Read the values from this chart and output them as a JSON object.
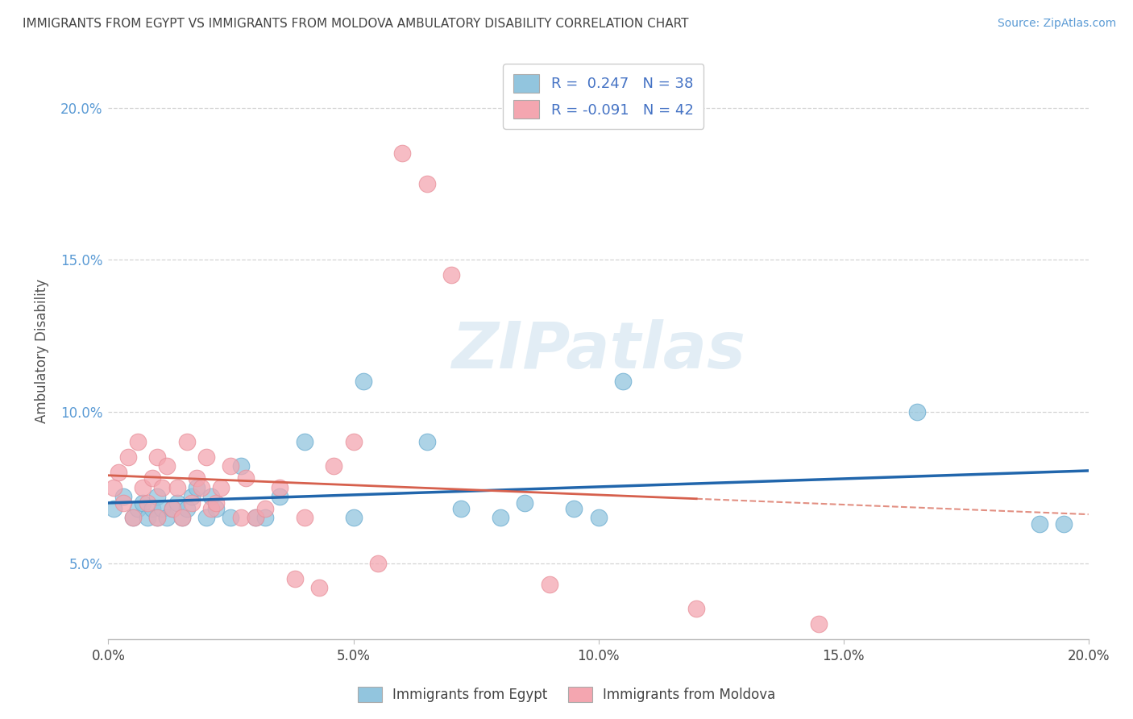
{
  "title": "IMMIGRANTS FROM EGYPT VS IMMIGRANTS FROM MOLDOVA AMBULATORY DISABILITY CORRELATION CHART",
  "source": "Source: ZipAtlas.com",
  "ylabel": "Ambulatory Disability",
  "legend_label1": "Immigrants from Egypt",
  "legend_label2": "Immigrants from Moldova",
  "R1": 0.247,
  "N1": 38,
  "R2": -0.091,
  "N2": 42,
  "color_egypt": "#92c5de",
  "color_moldova": "#f4a6b0",
  "color_egypt_line": "#2166ac",
  "color_moldova_line": "#d6604d",
  "xmin": 0.0,
  "xmax": 0.2,
  "ymin": 0.025,
  "ymax": 0.215,
  "x_tick_labels": [
    "0.0%",
    "5.0%",
    "10.0%",
    "15.0%",
    "20.0%"
  ],
  "x_tick_vals": [
    0.0,
    0.05,
    0.1,
    0.15,
    0.2
  ],
  "y_tick_labels": [
    "5.0%",
    "10.0%",
    "15.0%",
    "20.0%"
  ],
  "y_tick_vals": [
    0.05,
    0.1,
    0.15,
    0.2
  ],
  "egypt_x": [
    0.001,
    0.003,
    0.005,
    0.006,
    0.007,
    0.008,
    0.009,
    0.01,
    0.01,
    0.011,
    0.012,
    0.013,
    0.014,
    0.015,
    0.016,
    0.017,
    0.018,
    0.02,
    0.021,
    0.022,
    0.025,
    0.027,
    0.03,
    0.032,
    0.035,
    0.04,
    0.05,
    0.052,
    0.065,
    0.072,
    0.08,
    0.085,
    0.095,
    0.1,
    0.105,
    0.165,
    0.19,
    0.195
  ],
  "egypt_y": [
    0.068,
    0.072,
    0.065,
    0.068,
    0.07,
    0.065,
    0.068,
    0.072,
    0.065,
    0.068,
    0.065,
    0.068,
    0.07,
    0.065,
    0.068,
    0.072,
    0.075,
    0.065,
    0.072,
    0.068,
    0.065,
    0.082,
    0.065,
    0.065,
    0.072,
    0.09,
    0.065,
    0.11,
    0.09,
    0.068,
    0.065,
    0.07,
    0.068,
    0.065,
    0.11,
    0.1,
    0.063,
    0.063
  ],
  "moldova_x": [
    0.001,
    0.002,
    0.003,
    0.004,
    0.005,
    0.006,
    0.007,
    0.008,
    0.009,
    0.01,
    0.01,
    0.011,
    0.012,
    0.013,
    0.014,
    0.015,
    0.016,
    0.017,
    0.018,
    0.019,
    0.02,
    0.021,
    0.022,
    0.023,
    0.025,
    0.027,
    0.028,
    0.03,
    0.032,
    0.035,
    0.038,
    0.04,
    0.043,
    0.046,
    0.05,
    0.055,
    0.06,
    0.065,
    0.07,
    0.09,
    0.12,
    0.145
  ],
  "moldova_y": [
    0.075,
    0.08,
    0.07,
    0.085,
    0.065,
    0.09,
    0.075,
    0.07,
    0.078,
    0.065,
    0.085,
    0.075,
    0.082,
    0.068,
    0.075,
    0.065,
    0.09,
    0.07,
    0.078,
    0.075,
    0.085,
    0.068,
    0.07,
    0.075,
    0.082,
    0.065,
    0.078,
    0.065,
    0.068,
    0.075,
    0.045,
    0.065,
    0.042,
    0.082,
    0.09,
    0.05,
    0.185,
    0.175,
    0.145,
    0.043,
    0.035,
    0.03
  ],
  "watermark_text": "ZIPatlas",
  "background_color": "#ffffff",
  "grid_color": "#d0d0d0"
}
